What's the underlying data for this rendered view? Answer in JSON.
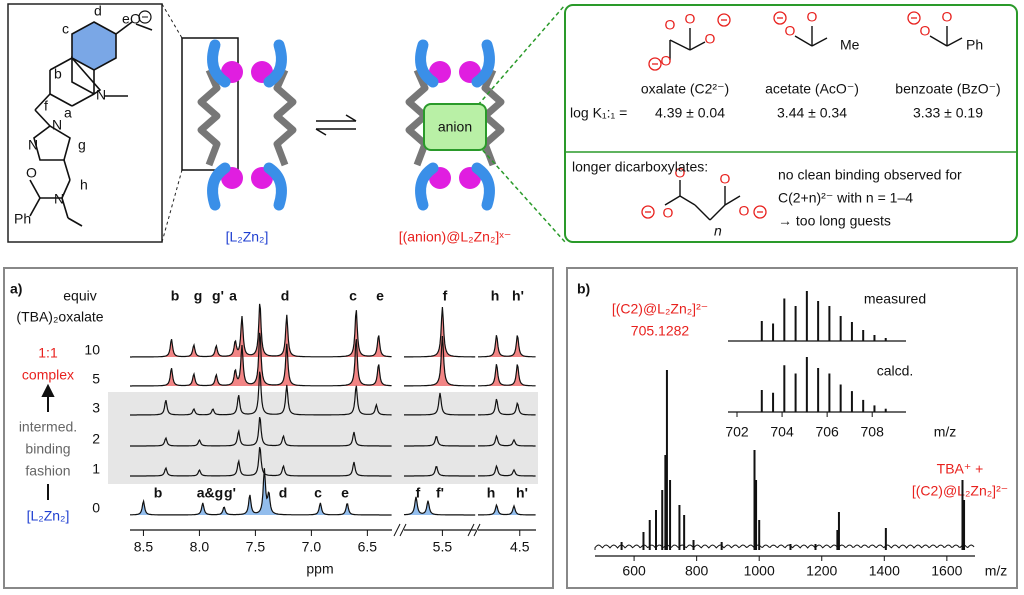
{
  "figure": {
    "structure": {
      "labels": [
        "d",
        "e",
        "c",
        "b",
        "f",
        "a",
        "g",
        "h"
      ],
      "atom_N": "N",
      "atom_O": "O",
      "atom_Ph": "Ph"
    },
    "cage": {
      "ligand": "[L₂Zn₂]",
      "complex": "[(anion)@L₂Zn₂]ˣ⁻",
      "anion": "anion"
    },
    "binding": {
      "guests": [
        {
          "name": "oxalate (C2²⁻)",
          "logK": "4.39 ± 0.04"
        },
        {
          "name": "acetate (AcO⁻)",
          "logK": "3.44 ± 0.34"
        },
        {
          "name": "benzoate (BzO⁻)",
          "logK": "3.33 ± 0.19"
        }
      ],
      "logK_label": "log K₁:₁ =",
      "atom_Me": "Me",
      "longer": "longer dicarboxylates:",
      "n": "n",
      "note": [
        "no clean binding observed for",
        "C(2+n)²⁻ with n = 1–4",
        "→ too long guests"
      ]
    },
    "panel_a": {
      "label": "a)",
      "equiv": "equiv",
      "reagent": "(TBA)₂oxalate",
      "complex": [
        "1:1",
        "complex"
      ],
      "intermediate": [
        "intermed.",
        "binding",
        "fashion"
      ],
      "ligand": "[L₂Zn₂]",
      "rows": [
        10,
        5,
        3,
        2,
        1,
        0
      ],
      "top_peaks": [
        "b",
        "g",
        "g'",
        "a",
        "d",
        "c",
        "e",
        "f",
        "h",
        "h'"
      ],
      "bottom_peaks": [
        "b",
        "a&g",
        "g'",
        "d",
        "c",
        "e",
        "f",
        "f'",
        "h",
        "h'"
      ],
      "segments": [
        [
          8.62,
          6.28
        ],
        [
          5.82,
          5.22
        ],
        [
          4.86,
          4.36
        ]
      ],
      "xticks": [
        8.5,
        {
          "value": 8,
          "label": "8.0"
        },
        7.5,
        {
          "value": 7,
          "label": "7.0"
        },
        6.5,
        5.5,
        4.5
      ],
      "xlabel": "ppm"
    },
    "panel_b": {
      "label": "b)",
      "ion": "[(C2)@L₂Zn₂]²⁻",
      "mass": "705.1282",
      "measured": "measured",
      "calcd": "calcd.",
      "inset_xlim": [
        701.6,
        709.5
      ],
      "inset_xticks": [
        702,
        704,
        706,
        708
      ],
      "xlabel": "m/z",
      "adduct": [
        "TBA⁺ +",
        "[(C2)@L₂Zn₂]²⁻"
      ],
      "xlim": [
        475,
        1690
      ],
      "xticks": [
        600,
        800,
        1000,
        1200,
        1400,
        1600
      ]
    }
  }
}
